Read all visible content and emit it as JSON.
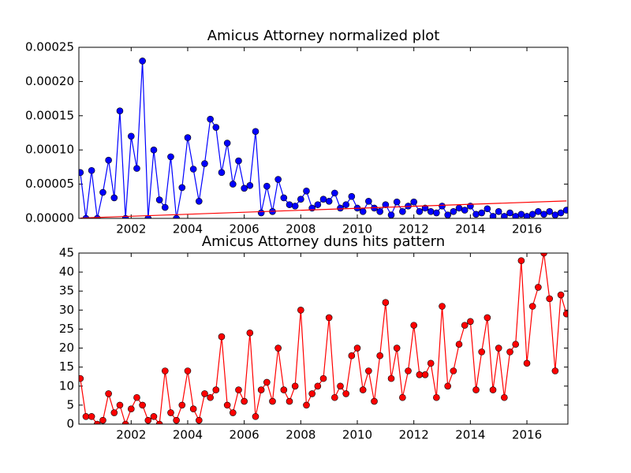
{
  "chart_data": [
    {
      "type": "line",
      "title": "Amicus Attorney normalized plot",
      "x": [
        2000.2,
        2000.4,
        2000.6,
        2000.8,
        2001.0,
        2001.2,
        2001.4,
        2001.6,
        2001.8,
        2002.0,
        2002.2,
        2002.4,
        2002.6,
        2002.8,
        2003.0,
        2003.2,
        2003.4,
        2003.6,
        2003.8,
        2004.0,
        2004.2,
        2004.4,
        2004.6,
        2004.8,
        2005.0,
        2005.2,
        2005.4,
        2005.6,
        2005.8,
        2006.0,
        2006.2,
        2006.4,
        2006.6,
        2006.8,
        2007.0,
        2007.2,
        2007.4,
        2007.6,
        2007.8,
        2008.0,
        2008.2,
        2008.4,
        2008.6,
        2008.8,
        2009.0,
        2009.2,
        2009.4,
        2009.6,
        2009.8,
        2010.0,
        2010.2,
        2010.4,
        2010.6,
        2010.8,
        2011.0,
        2011.2,
        2011.4,
        2011.6,
        2011.8,
        2012.0,
        2012.2,
        2012.4,
        2012.6,
        2012.8,
        2013.0,
        2013.2,
        2013.4,
        2013.6,
        2013.8,
        2014.0,
        2014.2,
        2014.4,
        2014.6,
        2014.8,
        2015.0,
        2015.2,
        2015.4,
        2015.6,
        2015.8,
        2016.0,
        2016.2,
        2016.4,
        2016.6,
        2016.8,
        2017.0,
        2017.2,
        2017.4
      ],
      "series": [
        {
          "color": "#0000ff",
          "values": [
            6.7e-05,
            0,
            7e-05,
            0,
            3.8e-05,
            8.5e-05,
            3e-05,
            0.000157,
            0,
            0.00012,
            7.3e-05,
            0.00023,
            0,
            0.0001,
            2.7e-05,
            1.6e-05,
            9e-05,
            0,
            4.5e-05,
            0.000118,
            7.2e-05,
            2.5e-05,
            8e-05,
            0.000145,
            0.000133,
            6.7e-05,
            0.00011,
            5e-05,
            8.4e-05,
            4.4e-05,
            4.8e-05,
            0.000127,
            8e-06,
            4.7e-05,
            1e-05,
            5.7e-05,
            3e-05,
            2e-05,
            1.8e-05,
            2.8e-05,
            4e-05,
            1.5e-05,
            2e-05,
            2.8e-05,
            2.5e-05,
            3.7e-05,
            1.5e-05,
            2e-05,
            3.2e-05,
            1.5e-05,
            1e-05,
            2.5e-05,
            1.5e-05,
            1e-05,
            2e-05,
            5e-06,
            2.4e-05,
            1e-05,
            1.8e-05,
            2.4e-05,
            1e-05,
            1.5e-05,
            1e-05,
            8e-06,
            1.8e-05,
            5e-06,
            1e-05,
            1.5e-05,
            1.2e-05,
            1.8e-05,
            6e-06,
            8e-06,
            1.4e-05,
            3e-06,
            1e-05,
            3e-06,
            8e-06,
            3e-06,
            6e-06,
            3e-06,
            6e-06,
            1e-05,
            6e-06,
            1e-05,
            5e-06,
            8e-06,
            1.2e-05
          ]
        }
      ],
      "trend": {
        "color": "#ff0000",
        "x": [
          2000.2,
          2017.4
        ],
        "values": [
          5e-07,
          2.55e-05
        ]
      },
      "xlim": [
        2000.15,
        2017.45
      ],
      "xticks": [
        2002,
        2004,
        2006,
        2008,
        2010,
        2012,
        2014,
        2016
      ],
      "ylim": [
        0,
        0.00025
      ],
      "yticks": [
        {
          "value": 0,
          "label": "0.00000"
        },
        {
          "value": 5e-05,
          "label": "0.00005"
        },
        {
          "value": 0.0001,
          "label": "0.00010"
        },
        {
          "value": 0.00015,
          "label": "0.00015"
        },
        {
          "value": 0.0002,
          "label": "0.00020"
        },
        {
          "value": 0.00025,
          "label": "0.00025"
        }
      ]
    },
    {
      "type": "line",
      "title": "Amicus Attorney duns hits pattern",
      "x": [
        2000.2,
        2000.4,
        2000.6,
        2000.8,
        2001.0,
        2001.2,
        2001.4,
        2001.6,
        2001.8,
        2002.0,
        2002.2,
        2002.4,
        2002.6,
        2002.8,
        2003.0,
        2003.2,
        2003.4,
        2003.6,
        2003.8,
        2004.0,
        2004.2,
        2004.4,
        2004.6,
        2004.8,
        2005.0,
        2005.2,
        2005.4,
        2005.6,
        2005.8,
        2006.0,
        2006.2,
        2006.4,
        2006.6,
        2006.8,
        2007.0,
        2007.2,
        2007.4,
        2007.6,
        2007.8,
        2008.0,
        2008.2,
        2008.4,
        2008.6,
        2008.8,
        2009.0,
        2009.2,
        2009.4,
        2009.6,
        2009.8,
        2010.0,
        2010.2,
        2010.4,
        2010.6,
        2010.8,
        2011.0,
        2011.2,
        2011.4,
        2011.6,
        2011.8,
        2012.0,
        2012.2,
        2012.4,
        2012.6,
        2012.8,
        2013.0,
        2013.2,
        2013.4,
        2013.6,
        2013.8,
        2014.0,
        2014.2,
        2014.4,
        2014.6,
        2014.8,
        2015.0,
        2015.2,
        2015.4,
        2015.6,
        2015.8,
        2016.0,
        2016.2,
        2016.4,
        2016.6,
        2016.8,
        2017.0,
        2017.2,
        2017.4
      ],
      "series": [
        {
          "color": "#ff0000",
          "values": [
            12,
            2,
            2,
            0,
            1,
            8,
            3,
            5,
            0,
            4,
            7,
            5,
            1,
            2,
            0,
            14,
            3,
            1,
            5,
            14,
            4,
            1,
            8,
            7,
            9,
            23,
            5,
            3,
            9,
            6,
            24,
            2,
            9,
            11,
            6,
            20,
            9,
            6,
            10,
            30,
            5,
            8,
            10,
            12,
            28,
            7,
            10,
            8,
            18,
            20,
            9,
            14,
            6,
            18,
            32,
            12,
            20,
            7,
            14,
            26,
            13,
            13,
            16,
            7,
            31,
            10,
            14,
            21,
            26,
            27,
            9,
            19,
            28,
            9,
            20,
            7,
            19,
            21,
            43,
            16,
            31,
            36,
            45,
            33,
            14,
            34,
            29
          ]
        }
      ],
      "xlim": [
        2000.15,
        2017.45
      ],
      "xticks": [
        2002,
        2004,
        2006,
        2008,
        2010,
        2012,
        2014,
        2016
      ],
      "ylim": [
        0,
        45
      ],
      "yticks": [
        0,
        5,
        10,
        15,
        20,
        25,
        30,
        35,
        40,
        45
      ]
    }
  ]
}
